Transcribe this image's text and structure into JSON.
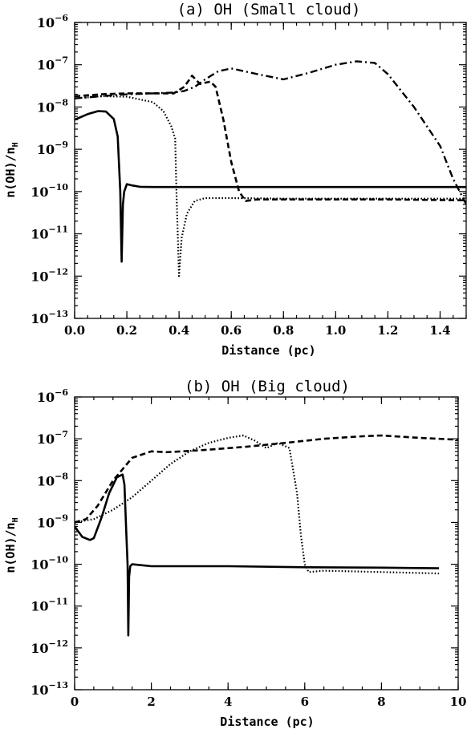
{
  "chart_data": [
    {
      "type": "line",
      "title": "(a) OH (Small cloud)",
      "xlabel": "Distance (pc)",
      "ylabel": "n(OH)/n",
      "ylabel_sub": "H",
      "xlim": [
        0,
        1.5
      ],
      "ylim_log10": [
        -13,
        -6
      ],
      "yscale": "log",
      "x_ticks": [
        "0.0",
        "0.2",
        "0.4",
        "0.6",
        "0.8",
        "1.0",
        "1.2",
        "1.4"
      ],
      "y_ticks": [
        -13,
        -12,
        -11,
        -10,
        -9,
        -8,
        -7,
        -6
      ],
      "y_tick_base": "10",
      "series": [
        {
          "style": "solid",
          "x": [
            0.0,
            0.05,
            0.09,
            0.12,
            0.15,
            0.165,
            0.175,
            0.18,
            0.185,
            0.19,
            0.2,
            0.22,
            0.25,
            0.3,
            0.4,
            0.6,
            1.0,
            1.5
          ],
          "y": [
            5e-09,
            6.8e-09,
            8e-09,
            7.8e-09,
            5.2e-09,
            2e-09,
            1e-10,
            2.2e-12,
            5e-11,
            1e-10,
            1.5e-10,
            1.4e-10,
            1.3e-10,
            1.28e-10,
            1.28e-10,
            1.28e-10,
            1.28e-10,
            1.28e-10
          ]
        },
        {
          "style": "dotted",
          "x": [
            0.0,
            0.1,
            0.2,
            0.3,
            0.34,
            0.37,
            0.385,
            0.39,
            0.395,
            0.4,
            0.41,
            0.43,
            0.46,
            0.5,
            0.6,
            0.8,
            1.2,
            1.5
          ],
          "y": [
            1.6e-08,
            1.8e-08,
            1.75e-08,
            1.3e-08,
            8e-09,
            3.5e-09,
            1.8e-09,
            1e-10,
            1e-11,
            1e-12,
            8e-12,
            3e-11,
            6e-11,
            7e-11,
            7e-11,
            6.8e-11,
            6.8e-11,
            6.8e-11
          ]
        },
        {
          "style": "dashed",
          "x": [
            0.0,
            0.1,
            0.2,
            0.3,
            0.38,
            0.42,
            0.45,
            0.48,
            0.52,
            0.54,
            0.57,
            0.6,
            0.63,
            0.655,
            0.7,
            0.8,
            1.2,
            1.5
          ],
          "y": [
            1.8e-08,
            2e-08,
            2.1e-08,
            2.1e-08,
            2.1e-08,
            3e-08,
            5.5e-08,
            3.5e-08,
            4e-08,
            3e-08,
            5e-09,
            5e-10,
            1e-10,
            6e-11,
            6.5e-11,
            6.5e-11,
            6.5e-11,
            6.2e-11
          ]
        },
        {
          "style": "dashdot",
          "x": [
            0.0,
            0.1,
            0.2,
            0.3,
            0.38,
            0.42,
            0.46,
            0.5,
            0.55,
            0.6,
            0.7,
            0.8,
            0.9,
            1.0,
            1.08,
            1.15,
            1.2,
            1.3,
            1.4,
            1.45,
            1.5
          ],
          "y": [
            1.6e-08,
            1.8e-08,
            2e-08,
            2.1e-08,
            2.2e-08,
            2.4e-08,
            3e-08,
            4.5e-08,
            7e-08,
            8.2e-08,
            6e-08,
            4.5e-08,
            6.5e-08,
            1e-07,
            1.2e-07,
            1.1e-07,
            6e-08,
            1e-08,
            1.2e-09,
            2e-10,
            5e-11
          ]
        }
      ]
    },
    {
      "type": "line",
      "title": "(b) OH (Big cloud)",
      "xlabel": "Distance (pc)",
      "ylabel": "n(OH)/n",
      "ylabel_sub": "H",
      "xlim": [
        0,
        10
      ],
      "ylim_log10": [
        -13,
        -6
      ],
      "yscale": "log",
      "x_ticks": [
        "0",
        "2",
        "4",
        "6",
        "8",
        "10"
      ],
      "y_ticks": [
        -13,
        -12,
        -11,
        -10,
        -9,
        -8,
        -7,
        -6
      ],
      "y_tick_base": "10",
      "series": [
        {
          "style": "solid",
          "x": [
            0.0,
            0.2,
            0.4,
            0.5,
            0.7,
            0.9,
            1.1,
            1.25,
            1.3,
            1.35,
            1.38,
            1.4,
            1.42,
            1.45,
            1.5,
            2.0,
            4.0,
            6.0,
            8.0,
            9.5
          ],
          "y": [
            8e-10,
            4.5e-10,
            3.8e-10,
            4.2e-10,
            1.3e-09,
            5e-09,
            1.2e-08,
            1.4e-08,
            8e-09,
            5e-10,
            1e-10,
            2e-12,
            5e-11,
            9e-11,
            1e-10,
            9e-11,
            9e-11,
            8.5e-11,
            8.3e-11,
            8e-11
          ]
        },
        {
          "style": "dotted",
          "x": [
            0.0,
            0.5,
            1.0,
            1.5,
            2.0,
            2.5,
            3.0,
            3.5,
            4.0,
            4.4,
            4.7,
            5.0,
            5.3,
            5.6,
            5.8,
            5.9,
            6.0,
            6.1,
            6.5,
            8.0,
            9.5
          ],
          "y": [
            1e-09,
            1.2e-09,
            2e-09,
            4e-09,
            1e-08,
            2.5e-08,
            5e-08,
            8e-08,
            1.05e-07,
            1.2e-07,
            9e-08,
            6e-08,
            8e-08,
            6e-08,
            5e-09,
            5e-10,
            1e-10,
            6.5e-11,
            7e-11,
            6.5e-11,
            6e-11
          ]
        },
        {
          "style": "dashed",
          "x": [
            0.0,
            0.3,
            0.6,
            1.0,
            1.5,
            2.0,
            2.4,
            2.8,
            3.5,
            4.5,
            5.5,
            6.5,
            7.5,
            8.0,
            9.0,
            10.0
          ],
          "y": [
            1e-09,
            1.2e-09,
            2.5e-09,
            1e-08,
            3.5e-08,
            5e-08,
            4.8e-08,
            5e-08,
            5.5e-08,
            6.5e-08,
            8e-08,
            1e-07,
            1.15e-07,
            1.2e-07,
            1.05e-07,
            9.5e-08
          ]
        }
      ]
    }
  ]
}
